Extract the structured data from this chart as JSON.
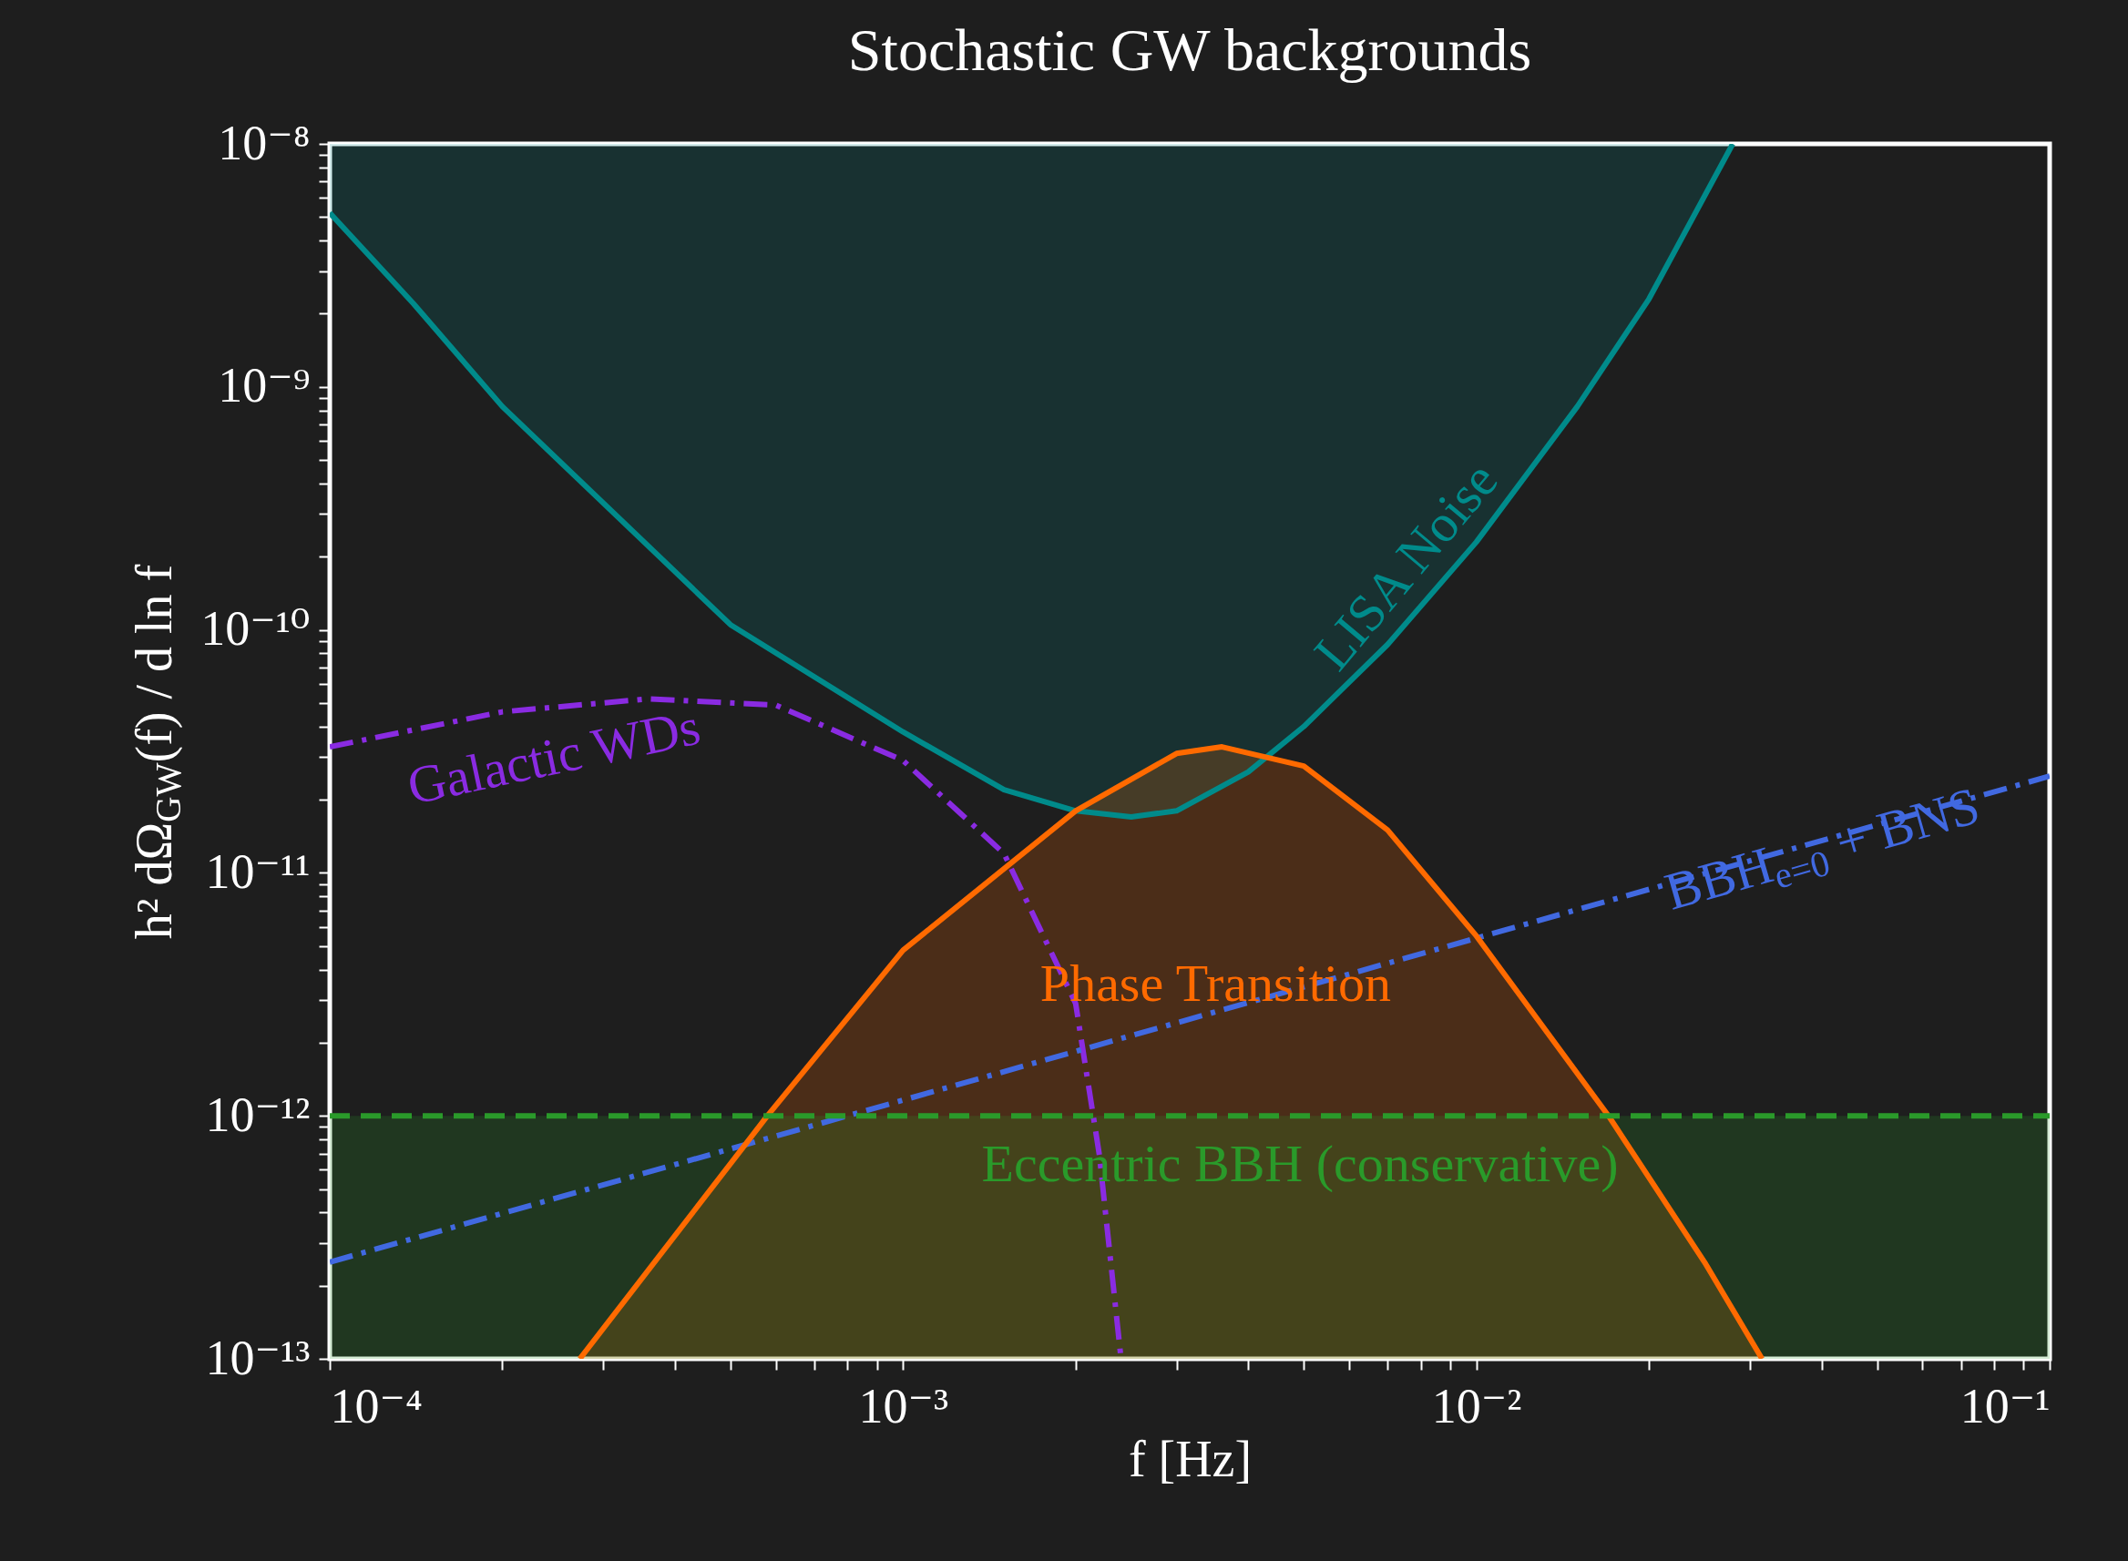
{
  "chart_data": {
    "type": "line",
    "title": "Stochastic GW backgrounds",
    "xlabel": "f [Hz]",
    "ylabel": "h² dΩ$_{GW}$(f) / d ln f",
    "log": "xy",
    "xlim": [
      0.0001,
      0.1
    ],
    "ylim": [
      1e-13,
      1e-08
    ],
    "xticks": [
      {
        "value": 0.0001,
        "label": "10⁻⁴"
      },
      {
        "value": 0.0002,
        "label": null
      },
      {
        "value": 0.0003,
        "label": null
      },
      {
        "value": 0.0004,
        "label": null
      },
      {
        "value": 0.0005,
        "label": null
      },
      {
        "value": 0.0006,
        "label": null
      },
      {
        "value": 0.0007,
        "label": null
      },
      {
        "value": 0.0008,
        "label": null
      },
      {
        "value": 0.0009,
        "label": null
      },
      {
        "value": 0.001,
        "label": "10⁻³"
      },
      {
        "value": 0.002,
        "label": null
      },
      {
        "value": 0.003,
        "label": null
      },
      {
        "value": 0.004,
        "label": null
      },
      {
        "value": 0.005,
        "label": null
      },
      {
        "value": 0.006,
        "label": null
      },
      {
        "value": 0.007,
        "label": null
      },
      {
        "value": 0.008,
        "label": null
      },
      {
        "value": 0.009,
        "label": null
      },
      {
        "value": 0.01,
        "label": "10⁻²"
      },
      {
        "value": 0.02,
        "label": null
      },
      {
        "value": 0.03,
        "label": null
      },
      {
        "value": 0.04,
        "label": null
      },
      {
        "value": 0.05,
        "label": null
      },
      {
        "value": 0.06,
        "label": null
      },
      {
        "value": 0.07,
        "label": null
      },
      {
        "value": 0.08,
        "label": null
      },
      {
        "value": 0.09,
        "label": null
      },
      {
        "value": 0.1,
        "label": "10⁻¹"
      }
    ],
    "yticks": [
      {
        "value": 1e-13,
        "label": "10⁻¹³"
      },
      {
        "value": 2e-13,
        "label": null
      },
      {
        "value": 3e-13,
        "label": null
      },
      {
        "value": 4e-13,
        "label": null
      },
      {
        "value": 5e-13,
        "label": null
      },
      {
        "value": 6e-13,
        "label": null
      },
      {
        "value": 7e-13,
        "label": null
      },
      {
        "value": 8e-13,
        "label": null
      },
      {
        "value": 9e-13,
        "label": null
      },
      {
        "value": 1e-12,
        "label": "10⁻¹²"
      },
      {
        "value": 2e-12,
        "label": null
      },
      {
        "value": 3e-12,
        "label": null
      },
      {
        "value": 4e-12,
        "label": null
      },
      {
        "value": 5e-12,
        "label": null
      },
      {
        "value": 6e-12,
        "label": null
      },
      {
        "value": 7e-12,
        "label": null
      },
      {
        "value": 8e-12,
        "label": null
      },
      {
        "value": 9e-12,
        "label": null
      },
      {
        "value": 1e-11,
        "label": "10⁻¹¹"
      },
      {
        "value": 2e-11,
        "label": null
      },
      {
        "value": 3e-11,
        "label": null
      },
      {
        "value": 4e-11,
        "label": null
      },
      {
        "value": 5e-11,
        "label": null
      },
      {
        "value": 6e-11,
        "label": null
      },
      {
        "value": 7e-11,
        "label": null
      },
      {
        "value": 8e-11,
        "label": null
      },
      {
        "value": 9e-11,
        "label": null
      },
      {
        "value": 1e-10,
        "label": "10⁻¹⁰"
      },
      {
        "value": 2e-10,
        "label": null
      },
      {
        "value": 3e-10,
        "label": null
      },
      {
        "value": 4e-10,
        "label": null
      },
      {
        "value": 5e-10,
        "label": null
      },
      {
        "value": 6e-10,
        "label": null
      },
      {
        "value": 7e-10,
        "label": null
      },
      {
        "value": 8e-10,
        "label": null
      },
      {
        "value": 9e-10,
        "label": null
      },
      {
        "value": 1e-09,
        "label": "10⁻⁹"
      },
      {
        "value": 2e-09,
        "label": null
      },
      {
        "value": 3e-09,
        "label": null
      },
      {
        "value": 4e-09,
        "label": null
      },
      {
        "value": 5e-09,
        "label": null
      },
      {
        "value": 6e-09,
        "label": null
      },
      {
        "value": 7e-09,
        "label": null
      },
      {
        "value": 8e-09,
        "label": null
      },
      {
        "value": 9e-09,
        "label": null
      },
      {
        "value": 1e-08,
        "label": "10⁻⁸"
      }
    ],
    "series": [
      {
        "name": "LISA Noise",
        "color": "#008b8b",
        "x": [
          0.0001,
          0.00014,
          0.0002,
          0.0005,
          0.001,
          0.0015,
          0.002,
          0.0025,
          0.003,
          0.004,
          0.005,
          0.007,
          0.01,
          0.015,
          0.02,
          0.028
        ],
        "values": [
          5.2e-09,
          2.2e-09,
          8.3e-10,
          1.05e-10,
          3.8e-11,
          2.2e-11,
          1.8e-11,
          1.7e-11,
          1.8e-11,
          2.6e-11,
          4e-11,
          8.7e-11,
          2.3e-10,
          8.3e-10,
          2.3e-09,
          1e-08
        ],
        "lower": [
          5.2e-09,
          2.2e-09,
          8.3e-10,
          1.05e-10,
          3.8e-11,
          2.2e-11,
          1.8e-11,
          1.7e-11,
          1.8e-11,
          2.6e-11,
          4e-11,
          8.7e-11,
          2.3e-10,
          8.3e-10,
          2.3e-09,
          1e-08
        ],
        "upper": [
          1e-08,
          1e-08,
          1e-08,
          1e-08,
          1e-08,
          1e-08,
          1e-08,
          1e-08,
          1e-08,
          1e-08,
          1e-08,
          1e-08,
          1e-08,
          1e-08,
          1e-08,
          1e-08
        ]
      },
      {
        "name": "Galactic WDs",
        "line_style": "dashdot",
        "color": "#8a2be2",
        "x": [
          0.0001,
          0.0002,
          0.00036,
          0.0006,
          0.001,
          0.0015,
          0.002,
          0.0022,
          0.0024
        ],
        "values": [
          3.3e-11,
          4.6e-11,
          5.2e-11,
          4.9e-11,
          2.9e-11,
          1.2e-11,
          2.9e-12,
          6.9e-13,
          1e-13
        ]
      },
      {
        "name": "BBH$_{e=0}$ + BNS",
        "line_style": "dashdot",
        "color": "#4169e1",
        "x": [
          0.0001,
          0.1
        ],
        "values": [
          2.5e-13,
          2.5e-11
        ]
      },
      {
        "name": "Phase Transition",
        "type": "area",
        "color": "#ff6a00",
        "x": [
          0.000273,
          0.00058,
          0.001,
          0.002,
          0.003,
          0.0036,
          0.005,
          0.007,
          0.01,
          0.017,
          0.025,
          0.0315
        ],
        "values": [
          1e-13,
          1e-12,
          4.8e-12,
          1.8e-11,
          3.1e-11,
          3.3e-11,
          2.75e-11,
          1.5e-11,
          5.5e-12,
          1e-12,
          2.5e-13,
          1e-13
        ]
      },
      {
        "name": "Eccentric BBH (conservative)",
        "type": "area",
        "line_style": "dashed",
        "color": "#2a9a2a",
        "x": [
          0.0001,
          0.1
        ],
        "values": [
          1e-12,
          1e-12
        ]
      }
    ]
  }
}
